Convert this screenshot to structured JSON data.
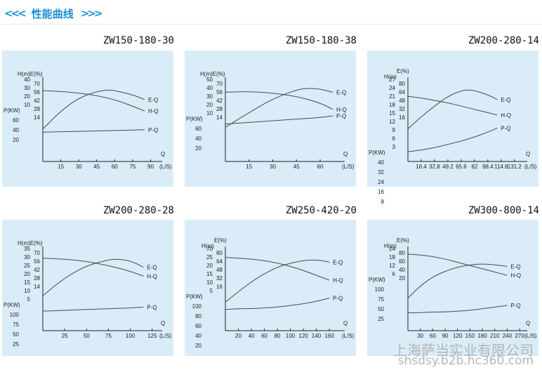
{
  "header": {
    "left_chevrons": "<<<",
    "title": "性能曲线",
    "right_chevrons": ">>>"
  },
  "watermark": {
    "line1": "上海萨当实业有限公司",
    "line2": "shsdsy.b2b.hc360.com"
  },
  "charts": [
    {
      "id": "zw150-180-30",
      "title": "ZW150-180-30",
      "type": "line",
      "x_unit_label": "Q",
      "x_unit": "(L/S)",
      "y_labels": {
        "h_e": "H(m)E(%)",
        "p": "P(KW)"
      },
      "x_ticks": [
        "15",
        "30",
        "45",
        "60",
        "75",
        "90"
      ],
      "x_tick_values": [
        15,
        30,
        45,
        60,
        75,
        90
      ],
      "x_max": 95,
      "h_ticks": [
        "40",
        "30",
        "20",
        "10"
      ],
      "e_ticks": [
        "70",
        "56",
        "42",
        "28",
        "14"
      ],
      "p_ticks": [
        "60",
        "40",
        "20"
      ],
      "series": [
        {
          "name": "E-Q",
          "x": [
            0,
            15,
            30,
            45,
            55,
            60,
            75,
            85
          ],
          "y": [
            0.4,
            0.62,
            0.78,
            0.86,
            0.88,
            0.87,
            0.82,
            0.76
          ]
        },
        {
          "name": "H-Q",
          "x": [
            0,
            15,
            30,
            45,
            60,
            75,
            85
          ],
          "y": [
            0.87,
            0.86,
            0.84,
            0.81,
            0.76,
            0.68,
            0.62
          ]
        },
        {
          "name": "P-Q",
          "x": [
            0,
            30,
            60,
            85
          ],
          "y": [
            0.36,
            0.37,
            0.38,
            0.39
          ]
        }
      ]
    },
    {
      "id": "zw150-180-38",
      "title": "ZW150-180-38",
      "type": "line",
      "x_unit_label": "Q",
      "x_unit": "(L/S)",
      "y_labels": {
        "h_e": "H(m)E(%)",
        "p": "P(KW)"
      },
      "x_ticks": [
        "15",
        "30",
        "45",
        "60"
      ],
      "x_tick_values": [
        15,
        30,
        45,
        60
      ],
      "x_max": 72,
      "h_ticks": [
        "50",
        "40",
        "30",
        "20",
        "10"
      ],
      "e_ticks": [
        "70",
        "56",
        "42",
        "28",
        "14"
      ],
      "p_ticks": [
        "60",
        "40",
        "20"
      ],
      "series": [
        {
          "name": "E-Q",
          "x": [
            0,
            15,
            30,
            45,
            52,
            60,
            68
          ],
          "y": [
            0.42,
            0.6,
            0.77,
            0.88,
            0.9,
            0.89,
            0.85
          ]
        },
        {
          "name": "H-Q",
          "x": [
            0,
            15,
            30,
            45,
            60,
            68
          ],
          "y": [
            0.85,
            0.86,
            0.84,
            0.8,
            0.72,
            0.64
          ]
        },
        {
          "name": "P-Q",
          "x": [
            0,
            30,
            60,
            68
          ],
          "y": [
            0.46,
            0.5,
            0.54,
            0.56
          ]
        }
      ]
    },
    {
      "id": "zw200-280-14",
      "title": "ZW200-280-14",
      "type": "line",
      "x_unit_label": "Q",
      "x_unit": "(L/S)",
      "y_labels": {
        "h": "H(m)",
        "e": "E(%)",
        "p": "P(KW)"
      },
      "x_ticks": [
        "16.4",
        "32.8",
        "49.2",
        "65.6",
        "82",
        "98.4",
        "114.8",
        "131.2"
      ],
      "x_tick_values": [
        16.4,
        32.8,
        49.2,
        65.6,
        82,
        98.4,
        114.8,
        131.2
      ],
      "x_max": 140,
      "h_ticks": [
        "27",
        "24",
        "21",
        "18",
        "15",
        "12",
        "9",
        "6",
        "3"
      ],
      "e_ticks": [
        "80",
        "64",
        "48",
        "32",
        "16"
      ],
      "p_ticks": [
        "40",
        "32",
        "24",
        "16",
        "8"
      ],
      "series": [
        {
          "name": "E-Q",
          "x": [
            0,
            16.4,
            32.8,
            49.2,
            65.6,
            75,
            82,
            98.4,
            110
          ],
          "y": [
            0.4,
            0.55,
            0.68,
            0.8,
            0.87,
            0.88,
            0.87,
            0.82,
            0.76
          ]
        },
        {
          "name": "H-Q",
          "x": [
            0,
            16.4,
            32.8,
            49.2,
            65.6,
            82,
            98.4,
            110
          ],
          "y": [
            0.8,
            0.78,
            0.75,
            0.72,
            0.68,
            0.64,
            0.6,
            0.57
          ]
        },
        {
          "name": "P-Q",
          "x": [
            0,
            16.4,
            32.8,
            49.2,
            65.6,
            82,
            98.4,
            110
          ],
          "y": [
            0.12,
            0.14,
            0.17,
            0.21,
            0.25,
            0.3,
            0.36,
            0.41
          ]
        }
      ]
    },
    {
      "id": "zw200-280-28",
      "title": "ZW200-280-28",
      "type": "line",
      "x_unit_label": "Q",
      "x_unit": "(L/S)",
      "y_labels": {
        "h_e": "H(m)E(%)",
        "p": "P(KW)"
      },
      "x_ticks": [
        "25",
        "50",
        "75",
        "100",
        "125"
      ],
      "x_tick_values": [
        25,
        50,
        75,
        100,
        125
      ],
      "x_max": 130,
      "h_ticks": [
        "35",
        "30",
        "25",
        "20",
        "15",
        "10",
        "5"
      ],
      "e_ticks": [
        "70",
        "56",
        "42",
        "28",
        "14"
      ],
      "p_ticks": [
        "100",
        "75",
        "50",
        "25"
      ],
      "series": [
        {
          "name": "E-Q",
          "x": [
            0,
            25,
            50,
            75,
            85,
            100,
            115
          ],
          "y": [
            0.43,
            0.65,
            0.8,
            0.87,
            0.88,
            0.86,
            0.78
          ]
        },
        {
          "name": "H-Q",
          "x": [
            0,
            25,
            50,
            75,
            100,
            115
          ],
          "y": [
            0.89,
            0.88,
            0.85,
            0.8,
            0.73,
            0.67
          ]
        },
        {
          "name": "P-Q",
          "x": [
            0,
            25,
            50,
            75,
            100,
            115
          ],
          "y": [
            0.24,
            0.25,
            0.26,
            0.27,
            0.28,
            0.29
          ]
        }
      ]
    },
    {
      "id": "zw250-420-20",
      "title": "ZW250-420-20",
      "type": "line",
      "x_unit_label": "Q",
      "x_unit": "(L/S)",
      "y_labels": {
        "h": "H(m)",
        "e": "E(%)",
        "p": "P(KW)"
      },
      "x_ticks": [
        "20",
        "40",
        "60",
        "80",
        "100",
        "120",
        "140",
        "160"
      ],
      "x_tick_values": [
        20,
        40,
        60,
        80,
        100,
        120,
        140,
        160
      ],
      "x_max": 175,
      "h_ticks": [
        "70",
        "25",
        "20",
        "15",
        "10",
        "5"
      ],
      "e_ticks": [
        "80",
        "64",
        "48",
        "32",
        "16"
      ],
      "p_ticks": [
        "100",
        "80",
        "60",
        "40",
        "20"
      ],
      "series": [
        {
          "name": "E-Q",
          "x": [
            0,
            20,
            40,
            60,
            80,
            100,
            120,
            135,
            150,
            160
          ],
          "y": [
            0.35,
            0.48,
            0.6,
            0.7,
            0.78,
            0.83,
            0.86,
            0.87,
            0.86,
            0.84
          ]
        },
        {
          "name": "H-Q",
          "x": [
            0,
            20,
            40,
            60,
            80,
            100,
            120,
            140,
            160
          ],
          "y": [
            0.9,
            0.89,
            0.88,
            0.86,
            0.83,
            0.79,
            0.74,
            0.68,
            0.62
          ]
        },
        {
          "name": "P-Q",
          "x": [
            0,
            20,
            40,
            60,
            80,
            100,
            120,
            140,
            160
          ],
          "y": [
            0.26,
            0.27,
            0.27,
            0.28,
            0.29,
            0.31,
            0.33,
            0.36,
            0.4
          ]
        }
      ]
    },
    {
      "id": "zw300-800-14",
      "title": "ZW300-800-14",
      "type": "line",
      "x_unit_label": "Q",
      "x_unit": "(L/S)",
      "y_labels": {
        "h": "H(m)",
        "e": "E(%)",
        "p": "P(KW)"
      },
      "x_ticks": [
        "30",
        "60",
        "90",
        "120",
        "150",
        "180",
        "210",
        "240",
        "270"
      ],
      "x_tick_values": [
        30,
        60,
        90,
        120,
        150,
        180,
        210,
        240,
        270
      ],
      "x_max": 275,
      "h_ticks": [
        "24",
        "18",
        "12",
        "6"
      ],
      "e_ticks": [
        "80",
        "60",
        "40",
        "20"
      ],
      "p_ticks": [
        "100",
        "75",
        "50",
        "25"
      ],
      "series": [
        {
          "name": "E-Q",
          "x": [
            0,
            30,
            60,
            90,
            120,
            150,
            180,
            210,
            240
          ],
          "y": [
            0.4,
            0.55,
            0.66,
            0.73,
            0.78,
            0.81,
            0.82,
            0.81,
            0.79
          ]
        },
        {
          "name": "H-Q",
          "x": [
            0,
            30,
            60,
            90,
            120,
            150,
            180,
            210,
            240
          ],
          "y": [
            0.94,
            0.93,
            0.91,
            0.88,
            0.84,
            0.8,
            0.76,
            0.72,
            0.68
          ]
        },
        {
          "name": "P-Q",
          "x": [
            0,
            30,
            60,
            90,
            120,
            150,
            180,
            210,
            240
          ],
          "y": [
            0.22,
            0.22,
            0.23,
            0.23,
            0.24,
            0.25,
            0.27,
            0.29,
            0.31
          ]
        }
      ]
    }
  ]
}
